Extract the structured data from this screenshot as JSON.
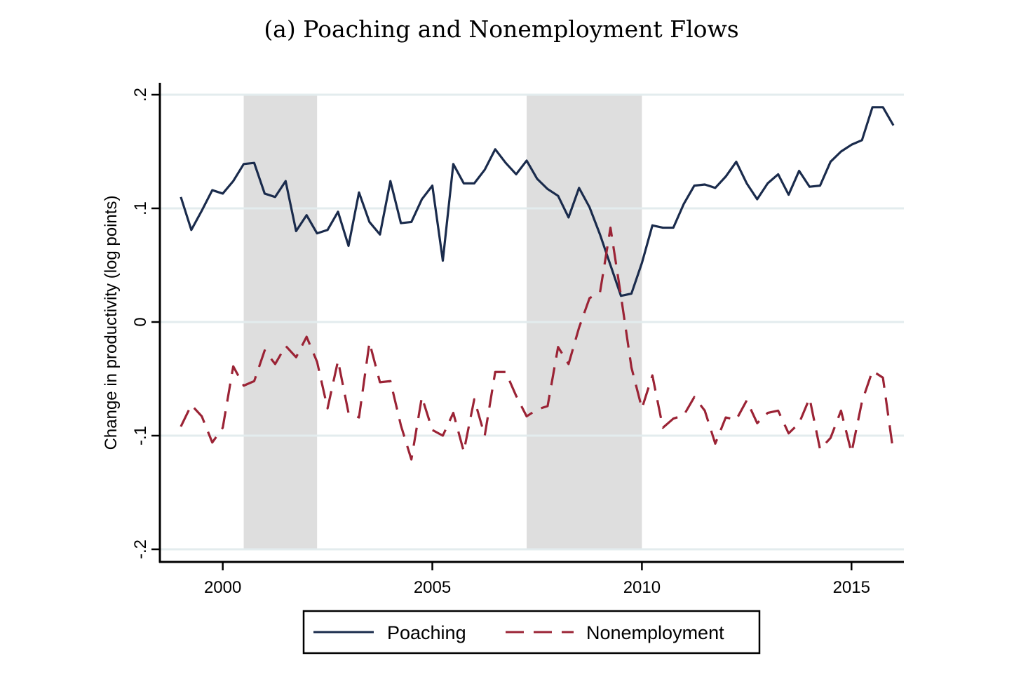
{
  "chart_data": {
    "type": "line",
    "title": "(a) Poaching and Nonemployment Flows",
    "xlabel": "",
    "ylabel": "Change in productivity (log points)",
    "xlim": [
      1998.5,
      2016.25
    ],
    "ylim": [
      -0.2,
      0.2
    ],
    "x_ticks": [
      2000,
      2005,
      2010,
      2015
    ],
    "y_ticks": [
      -0.2,
      -0.1,
      0,
      0.1,
      0.2
    ],
    "y_tick_labels": [
      "-.2",
      "-.1",
      "0",
      ".1",
      ".2"
    ],
    "x_tick_labels": [
      "2000",
      "2005",
      "2010",
      "2015"
    ],
    "grid": true,
    "legend_position": "bottom",
    "recession_shading": [
      {
        "start": 2000.5,
        "end": 2002.25
      },
      {
        "start": 2007.25,
        "end": 2010.0
      }
    ],
    "x_start": 1999.0,
    "x_step": 0.25,
    "series": [
      {
        "name": "Poaching",
        "color": "#1a2b4c",
        "style": "solid",
        "values": [
          0.11,
          0.081,
          0.098,
          0.116,
          0.113,
          0.124,
          0.139,
          0.14,
          0.113,
          0.11,
          0.124,
          0.08,
          0.094,
          0.078,
          0.081,
          0.097,
          0.067,
          0.114,
          0.088,
          0.077,
          0.124,
          0.087,
          0.088,
          0.108,
          0.12,
          0.054,
          0.139,
          0.122,
          0.122,
          0.134,
          0.152,
          0.14,
          0.13,
          0.142,
          0.126,
          0.117,
          0.111,
          0.092,
          0.118,
          0.101,
          0.077,
          0.05,
          0.023,
          0.025,
          0.052,
          0.085,
          0.083,
          0.083,
          0.104,
          0.12,
          0.121,
          0.118,
          0.128,
          0.141,
          0.122,
          0.108,
          0.122,
          0.13,
          0.112,
          0.133,
          0.119,
          0.12,
          0.141,
          0.15,
          0.156,
          0.16,
          0.189,
          0.189,
          0.173
        ]
      },
      {
        "name": "Nonemployment",
        "color": "#9b2335",
        "style": "dashed",
        "values": [
          -0.092,
          -0.073,
          -0.083,
          -0.106,
          -0.093,
          -0.039,
          -0.056,
          -0.052,
          -0.025,
          -0.037,
          -0.021,
          -0.031,
          -0.013,
          -0.035,
          -0.076,
          -0.034,
          -0.08,
          -0.084,
          -0.018,
          -0.053,
          -0.052,
          -0.091,
          -0.121,
          -0.066,
          -0.095,
          -0.1,
          -0.08,
          -0.114,
          -0.068,
          -0.1,
          -0.044,
          -0.044,
          -0.065,
          -0.083,
          -0.077,
          -0.074,
          -0.022,
          -0.037,
          -0.005,
          0.021,
          0.026,
          0.083,
          0.023,
          -0.04,
          -0.076,
          -0.047,
          -0.093,
          -0.085,
          -0.082,
          -0.066,
          -0.078,
          -0.107,
          -0.084,
          -0.086,
          -0.069,
          -0.089,
          -0.08,
          -0.078,
          -0.098,
          -0.089,
          -0.067,
          -0.112,
          -0.102,
          -0.078,
          -0.115,
          -0.07,
          -0.043,
          -0.049,
          -0.115
        ]
      }
    ]
  }
}
